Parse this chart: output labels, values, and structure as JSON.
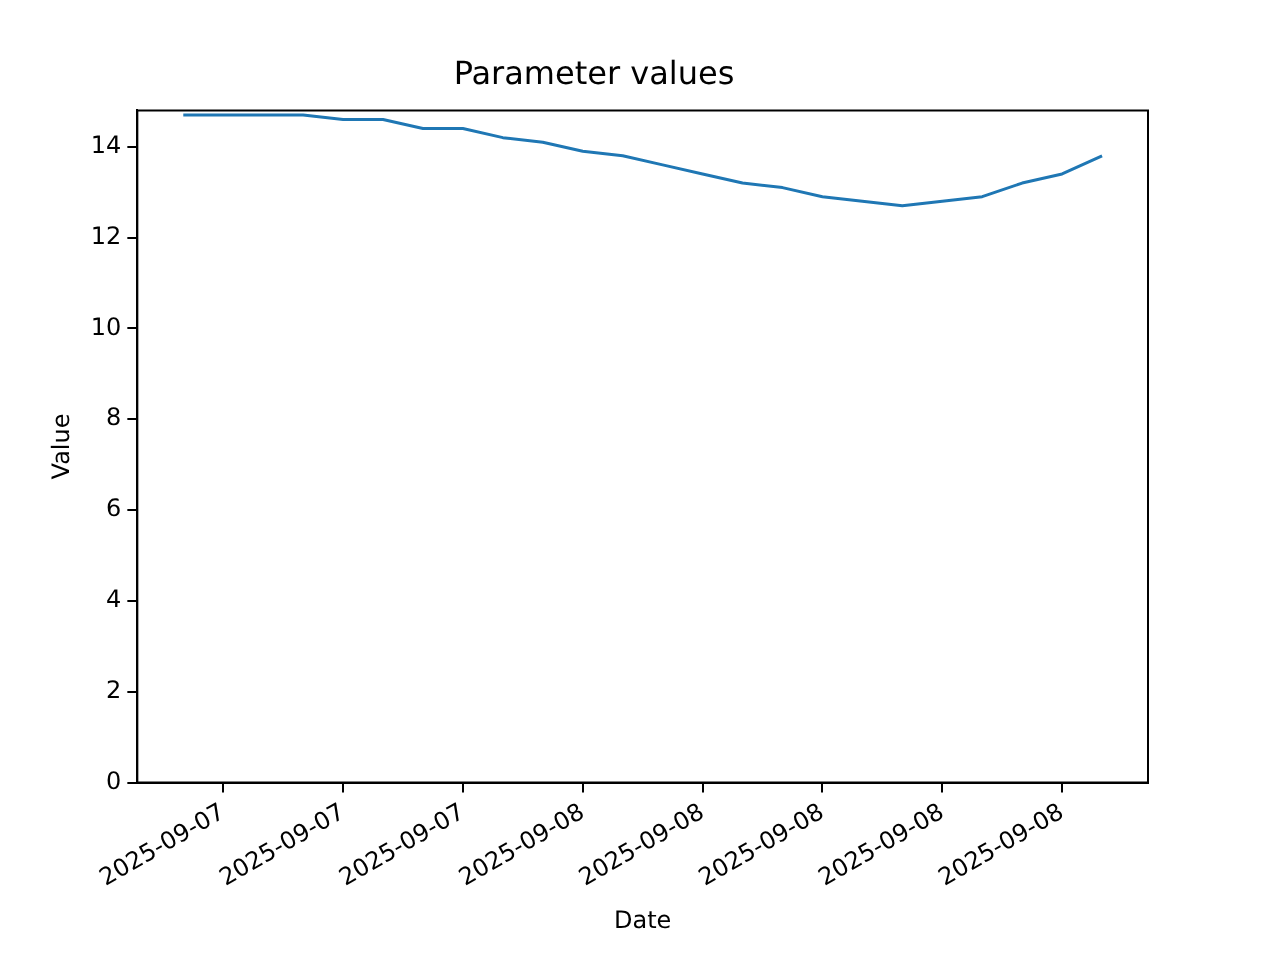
{
  "chart_data": {
    "type": "line",
    "title": "Parameter values",
    "xlabel": "Date",
    "ylabel": "Value",
    "x": [
      "2025-09-07T14:00",
      "2025-09-07T15:00",
      "2025-09-07T16:00",
      "2025-09-07T17:00",
      "2025-09-07T18:00",
      "2025-09-07T19:00",
      "2025-09-07T20:00",
      "2025-09-07T21:00",
      "2025-09-07T22:00",
      "2025-09-07T23:00",
      "2025-09-08T00:00",
      "2025-09-08T01:00",
      "2025-09-08T02:00",
      "2025-09-08T03:00",
      "2025-09-08T04:00",
      "2025-09-08T05:00",
      "2025-09-08T06:00",
      "2025-09-08T07:00",
      "2025-09-08T08:00",
      "2025-09-08T09:00",
      "2025-09-08T10:00",
      "2025-09-08T11:00",
      "2025-09-08T12:00",
      "2025-09-08T13:00"
    ],
    "series": [
      {
        "color": "#1f77b4",
        "values": [
          14.7,
          14.7,
          14.7,
          14.7,
          14.6,
          14.6,
          14.4,
          14.4,
          14.2,
          14.1,
          13.9,
          13.8,
          13.6,
          13.4,
          13.2,
          13.1,
          12.9,
          12.8,
          12.7,
          12.8,
          12.9,
          13.2,
          13.4,
          13.8
        ]
      }
    ],
    "xlim": [
      "2025-09-07T12:51",
      "2025-09-08T14:09"
    ],
    "xticks": [
      {
        "value": "2025-09-07T15:00",
        "label": "2025-09-07"
      },
      {
        "value": "2025-09-07T18:00",
        "label": "2025-09-07"
      },
      {
        "value": "2025-09-07T21:00",
        "label": "2025-09-07"
      },
      {
        "value": "2025-09-08T00:00",
        "label": "2025-09-08"
      },
      {
        "value": "2025-09-08T03:00",
        "label": "2025-09-08"
      },
      {
        "value": "2025-09-08T06:00",
        "label": "2025-09-08"
      },
      {
        "value": "2025-09-08T09:00",
        "label": "2025-09-08"
      },
      {
        "value": "2025-09-08T12:00",
        "label": "2025-09-08"
      }
    ],
    "ylim": [
      0,
      14.8
    ],
    "yticks": [
      0,
      2,
      4,
      6,
      8,
      10,
      12,
      14
    ],
    "grid": false,
    "legend": false,
    "marker": "none",
    "line_style": "solid"
  }
}
